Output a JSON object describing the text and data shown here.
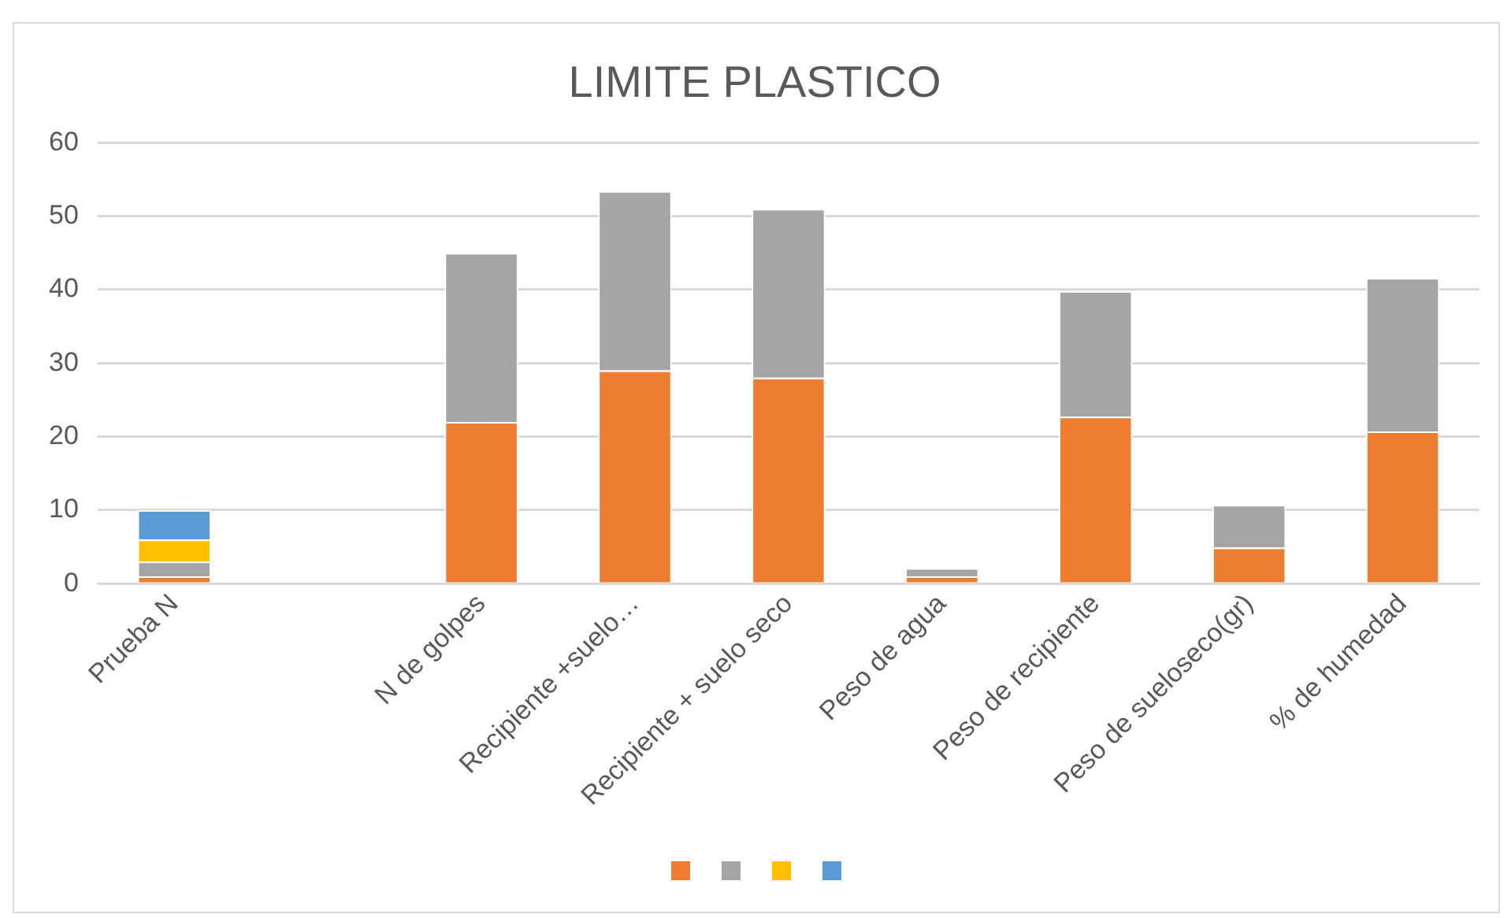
{
  "chart_data": {
    "type": "bar",
    "title": "LIMITE PLASTICO",
    "categories": [
      "Prueba N",
      null,
      "N de golpes",
      "Recipiente +suelo…",
      "Recipiente + suelo seco",
      "Peso de agua",
      "Peso de recipiente",
      "Peso de sueloseco(gr)",
      "% de humedad"
    ],
    "series": [
      {
        "color": "#ed7d31",
        "values": [
          1,
          null,
          22,
          29,
          28,
          1,
          22.7,
          4.9,
          20.7
        ]
      },
      {
        "color": "#a5a5a5",
        "values": [
          2,
          null,
          23,
          24.4,
          23,
          1.1,
          17.1,
          5.8,
          20.9
        ]
      },
      {
        "color": "#ffc000",
        "values": [
          3,
          null,
          null,
          null,
          null,
          null,
          null,
          null,
          null
        ]
      },
      {
        "color": "#5b9bd5",
        "values": [
          4,
          null,
          null,
          null,
          null,
          null,
          null,
          null,
          null
        ]
      }
    ],
    "stacked": true,
    "ylim": [
      0,
      60
    ],
    "yticks": [
      0,
      10,
      20,
      30,
      40,
      50,
      60
    ],
    "grid": "y"
  }
}
